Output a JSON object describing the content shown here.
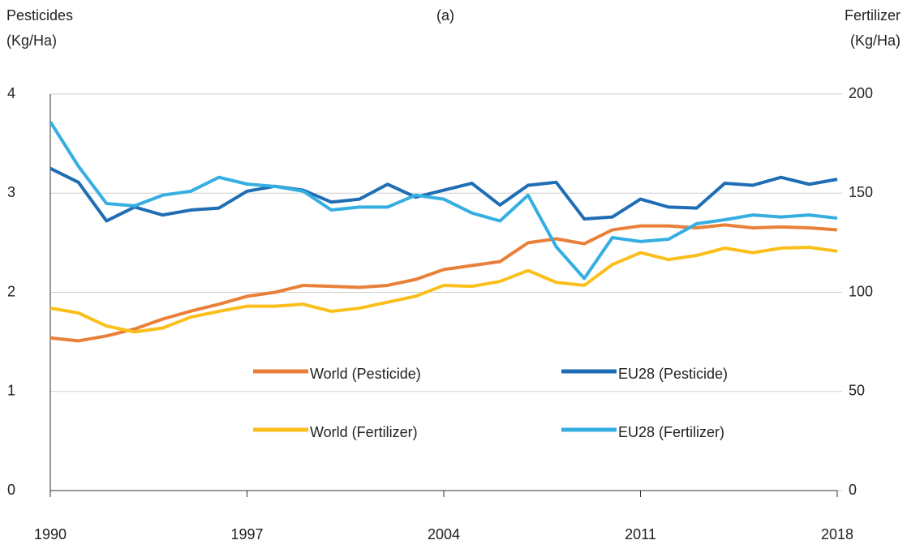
{
  "chart_data": {
    "type": "line",
    "title": "(a)",
    "y_label": [
      "Pesticides",
      "(Kg/Ha)"
    ],
    "y2_label": [
      "Fertilizer",
      "(Kg/Ha)"
    ],
    "x": [
      1990,
      1991,
      1992,
      1993,
      1994,
      1995,
      1996,
      1997,
      1998,
      1999,
      2000,
      2001,
      2002,
      2003,
      2004,
      2005,
      2006,
      2007,
      2008,
      2009,
      2010,
      2011,
      2012,
      2013,
      2014,
      2015,
      2016,
      2017,
      2018
    ],
    "xlim": [
      1990,
      2018
    ],
    "xticks": [
      1990,
      1997,
      2004,
      2011,
      2018
    ],
    "ylim": [
      0,
      4
    ],
    "yticks": [
      0,
      1,
      2,
      3,
      4
    ],
    "y2lim": [
      0,
      200
    ],
    "y2ticks": [
      0,
      50,
      100,
      150,
      200
    ],
    "grid": true,
    "series": [
      {
        "name": "World (Pesticide)",
        "color": "#e8803a",
        "axis": "y",
        "values": [
          1.54,
          1.51,
          1.56,
          1.63,
          1.73,
          1.81,
          1.88,
          1.96,
          2.0,
          2.07,
          2.06,
          2.05,
          2.07,
          2.13,
          2.23,
          2.27,
          2.31,
          2.5,
          2.54,
          2.49,
          2.63,
          2.67,
          2.67,
          2.65,
          2.68,
          2.65,
          2.66,
          2.65,
          2.63
        ]
      },
      {
        "name": "EU28 (Pesticide)",
        "color": "#1f6eb5",
        "axis": "y",
        "values": [
          3.25,
          3.11,
          2.72,
          2.86,
          2.78,
          2.83,
          2.85,
          3.02,
          3.07,
          3.03,
          2.91,
          2.94,
          3.09,
          2.96,
          3.03,
          3.1,
          2.88,
          3.08,
          3.11,
          2.74,
          2.76,
          2.94,
          2.86,
          2.85,
          3.1,
          3.08,
          3.16,
          3.09,
          3.14
        ]
      },
      {
        "name": "World (Fertilizer)",
        "color": "#fbbf1c",
        "axis": "y2",
        "values": [
          92,
          89.6,
          83,
          80,
          82,
          87.5,
          90.4,
          93,
          93,
          94,
          90.4,
          92,
          95,
          98,
          103.5,
          103,
          105.5,
          111,
          105,
          103.5,
          114,
          120,
          116.5,
          118.6,
          122.3,
          120,
          122.3,
          122.7,
          120.7
        ]
      },
      {
        "name": "EU28 (Fertilizer)",
        "color": "#35aee2",
        "axis": "y2",
        "values": [
          186,
          163.6,
          144.8,
          143.6,
          149,
          151,
          158,
          154.6,
          153.4,
          151,
          141.5,
          143,
          143,
          149,
          147,
          140,
          136,
          149,
          123,
          107,
          127.6,
          125.6,
          126.8,
          134.6,
          136.6,
          139,
          138,
          139,
          137.4
        ]
      }
    ]
  }
}
